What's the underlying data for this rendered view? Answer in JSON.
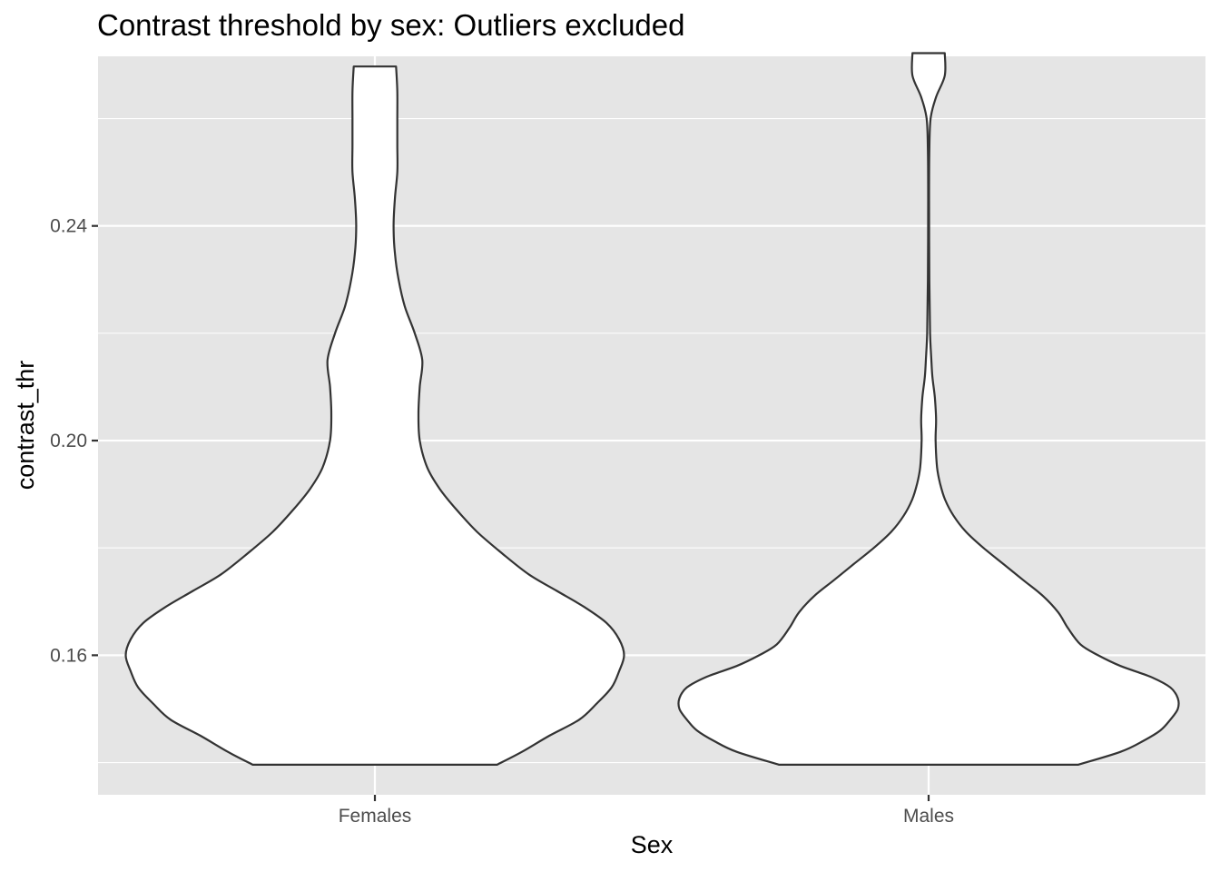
{
  "chart_data": {
    "type": "violin",
    "title": "Contrast threshold by sex: Outliers excluded",
    "xlabel": "Sex",
    "ylabel": "contrast_thr",
    "categories": [
      "Females",
      "Males"
    ],
    "yticks": [
      0.16,
      0.2,
      0.24
    ],
    "ytick_labels": [
      "0.16",
      "0.20",
      "0.24"
    ],
    "ylim": [
      0.134,
      0.2716
    ],
    "grid": true,
    "colors": {
      "panel": "#e5e5e5",
      "grid": "#ffffff",
      "violin_fill": "#ffffff",
      "violin_stroke": "#333333"
    },
    "series": [
      {
        "category": "Females",
        "min": 0.1396,
        "max": 0.2697,
        "density_profile": [
          [
            0.1396,
            0.49
          ],
          [
            0.142,
            0.59
          ],
          [
            0.145,
            0.7
          ],
          [
            0.148,
            0.82
          ],
          [
            0.151,
            0.89
          ],
          [
            0.154,
            0.95
          ],
          [
            0.157,
            0.98
          ],
          [
            0.16,
            1.0
          ],
          [
            0.163,
            0.98
          ],
          [
            0.166,
            0.93
          ],
          [
            0.169,
            0.84
          ],
          [
            0.172,
            0.73
          ],
          [
            0.175,
            0.62
          ],
          [
            0.179,
            0.51
          ],
          [
            0.183,
            0.41
          ],
          [
            0.187,
            0.33
          ],
          [
            0.191,
            0.26
          ],
          [
            0.195,
            0.21
          ],
          [
            0.2,
            0.18
          ],
          [
            0.205,
            0.175
          ],
          [
            0.21,
            0.18
          ],
          [
            0.215,
            0.19
          ],
          [
            0.22,
            0.16
          ],
          [
            0.225,
            0.12
          ],
          [
            0.23,
            0.095
          ],
          [
            0.235,
            0.08
          ],
          [
            0.24,
            0.075
          ],
          [
            0.245,
            0.08
          ],
          [
            0.25,
            0.09
          ],
          [
            0.255,
            0.09
          ],
          [
            0.26,
            0.09
          ],
          [
            0.265,
            0.09
          ],
          [
            0.2697,
            0.085
          ]
        ]
      },
      {
        "category": "Males",
        "min": 0.1396,
        "max": 0.2722,
        "density_profile": [
          [
            0.1396,
            0.6
          ],
          [
            0.142,
            0.77
          ],
          [
            0.144,
            0.86
          ],
          [
            0.146,
            0.93
          ],
          [
            0.148,
            0.97
          ],
          [
            0.15,
            1.0
          ],
          [
            0.152,
            1.0
          ],
          [
            0.154,
            0.97
          ],
          [
            0.156,
            0.89
          ],
          [
            0.158,
            0.77
          ],
          [
            0.16,
            0.68
          ],
          [
            0.162,
            0.61
          ],
          [
            0.165,
            0.56
          ],
          [
            0.168,
            0.52
          ],
          [
            0.171,
            0.46
          ],
          [
            0.174,
            0.38
          ],
          [
            0.177,
            0.3
          ],
          [
            0.18,
            0.22
          ],
          [
            0.183,
            0.15
          ],
          [
            0.186,
            0.1
          ],
          [
            0.189,
            0.066
          ],
          [
            0.192,
            0.046
          ],
          [
            0.195,
            0.034
          ],
          [
            0.2,
            0.028
          ],
          [
            0.204,
            0.03
          ],
          [
            0.208,
            0.025
          ],
          [
            0.212,
            0.015
          ],
          [
            0.216,
            0.01
          ],
          [
            0.22,
            0.006
          ],
          [
            0.23,
            0.003
          ],
          [
            0.245,
            0.002
          ],
          [
            0.254,
            0.003
          ],
          [
            0.26,
            0.008
          ],
          [
            0.264,
            0.03
          ],
          [
            0.268,
            0.065
          ],
          [
            0.2722,
            0.065
          ]
        ]
      }
    ]
  }
}
